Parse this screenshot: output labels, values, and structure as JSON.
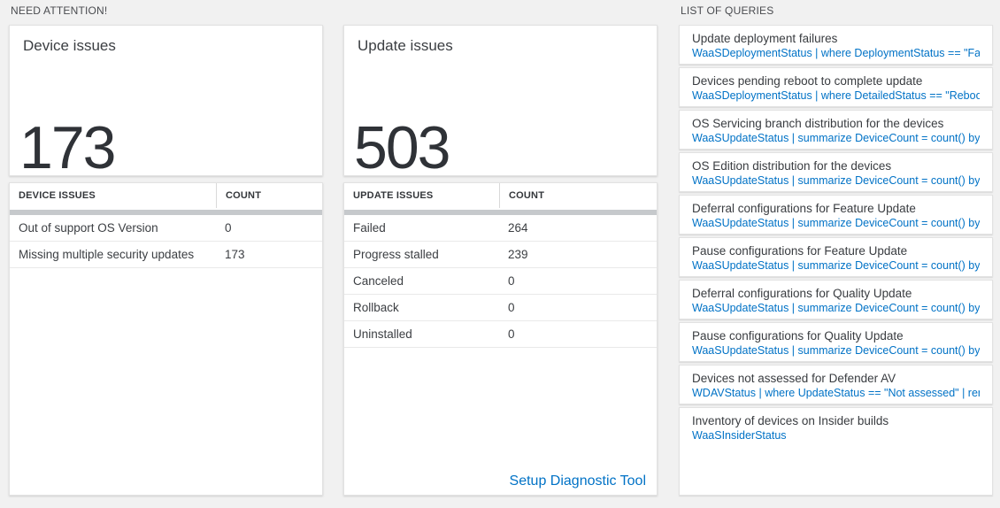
{
  "colors": {
    "page_background": "#f1f1f1",
    "accent_blue": "#0072c6",
    "text_dark": "#2f3237",
    "thick_bar": "#c6c9cc"
  },
  "need_attention": {
    "label": "NEED ATTENTION!",
    "device_card": {
      "title": "Device issues",
      "count": "173"
    },
    "device_table": {
      "headers": {
        "name": "DEVICE ISSUES",
        "count": "COUNT"
      },
      "rows": [
        {
          "name": "Out of support OS Version",
          "count": "0"
        },
        {
          "name": "Missing multiple security updates",
          "count": "173"
        }
      ]
    },
    "update_card": {
      "title": "Update issues",
      "count": "503"
    },
    "update_table": {
      "headers": {
        "name": "UPDATE ISSUES",
        "count": "COUNT"
      },
      "rows": [
        {
          "name": "Failed",
          "count": "264"
        },
        {
          "name": "Progress stalled",
          "count": "239"
        },
        {
          "name": "Canceled",
          "count": "0"
        },
        {
          "name": "Rollback",
          "count": "0"
        },
        {
          "name": "Uninstalled",
          "count": "0"
        }
      ],
      "footer_link": "Setup Diagnostic Tool"
    }
  },
  "queries": {
    "label": "LIST OF QUERIES",
    "items": [
      {
        "title": "Update deployment failures",
        "query": "WaaSDeploymentStatus | where DeploymentStatus == \"Failed\" |..."
      },
      {
        "title": "Devices pending reboot to complete update",
        "query": "WaaSDeploymentStatus | where DetailedStatus == \"Reboot pend..."
      },
      {
        "title": "OS Servicing branch distribution for the devices",
        "query": "WaaSUpdateStatus | summarize DeviceCount = count() by OSSer..."
      },
      {
        "title": "OS Edition distribution for the devices",
        "query": "WaaSUpdateStatus | summarize DeviceCount = count() by OSEdit..."
      },
      {
        "title": "Deferral configurations for Feature Update",
        "query": "WaaSUpdateStatus | summarize DeviceCount = count() by Featur..."
      },
      {
        "title": "Pause configurations for Feature Update",
        "query": "WaaSUpdateStatus | summarize DeviceCount = count() by Featur..."
      },
      {
        "title": "Deferral configurations for Quality Update",
        "query": "WaaSUpdateStatus | summarize DeviceCount = count() by Qualit..."
      },
      {
        "title": "Pause configurations for Quality Update",
        "query": "WaaSUpdateStatus | summarize DeviceCount = count() by Qualit..."
      },
      {
        "title": "Devices not assessed for Defender AV",
        "query": "WDAVStatus | where UpdateStatus == \"Not assessed\" | render ta..."
      },
      {
        "title": "Inventory of devices on Insider builds",
        "query": "WaaSInsiderStatus"
      }
    ]
  }
}
